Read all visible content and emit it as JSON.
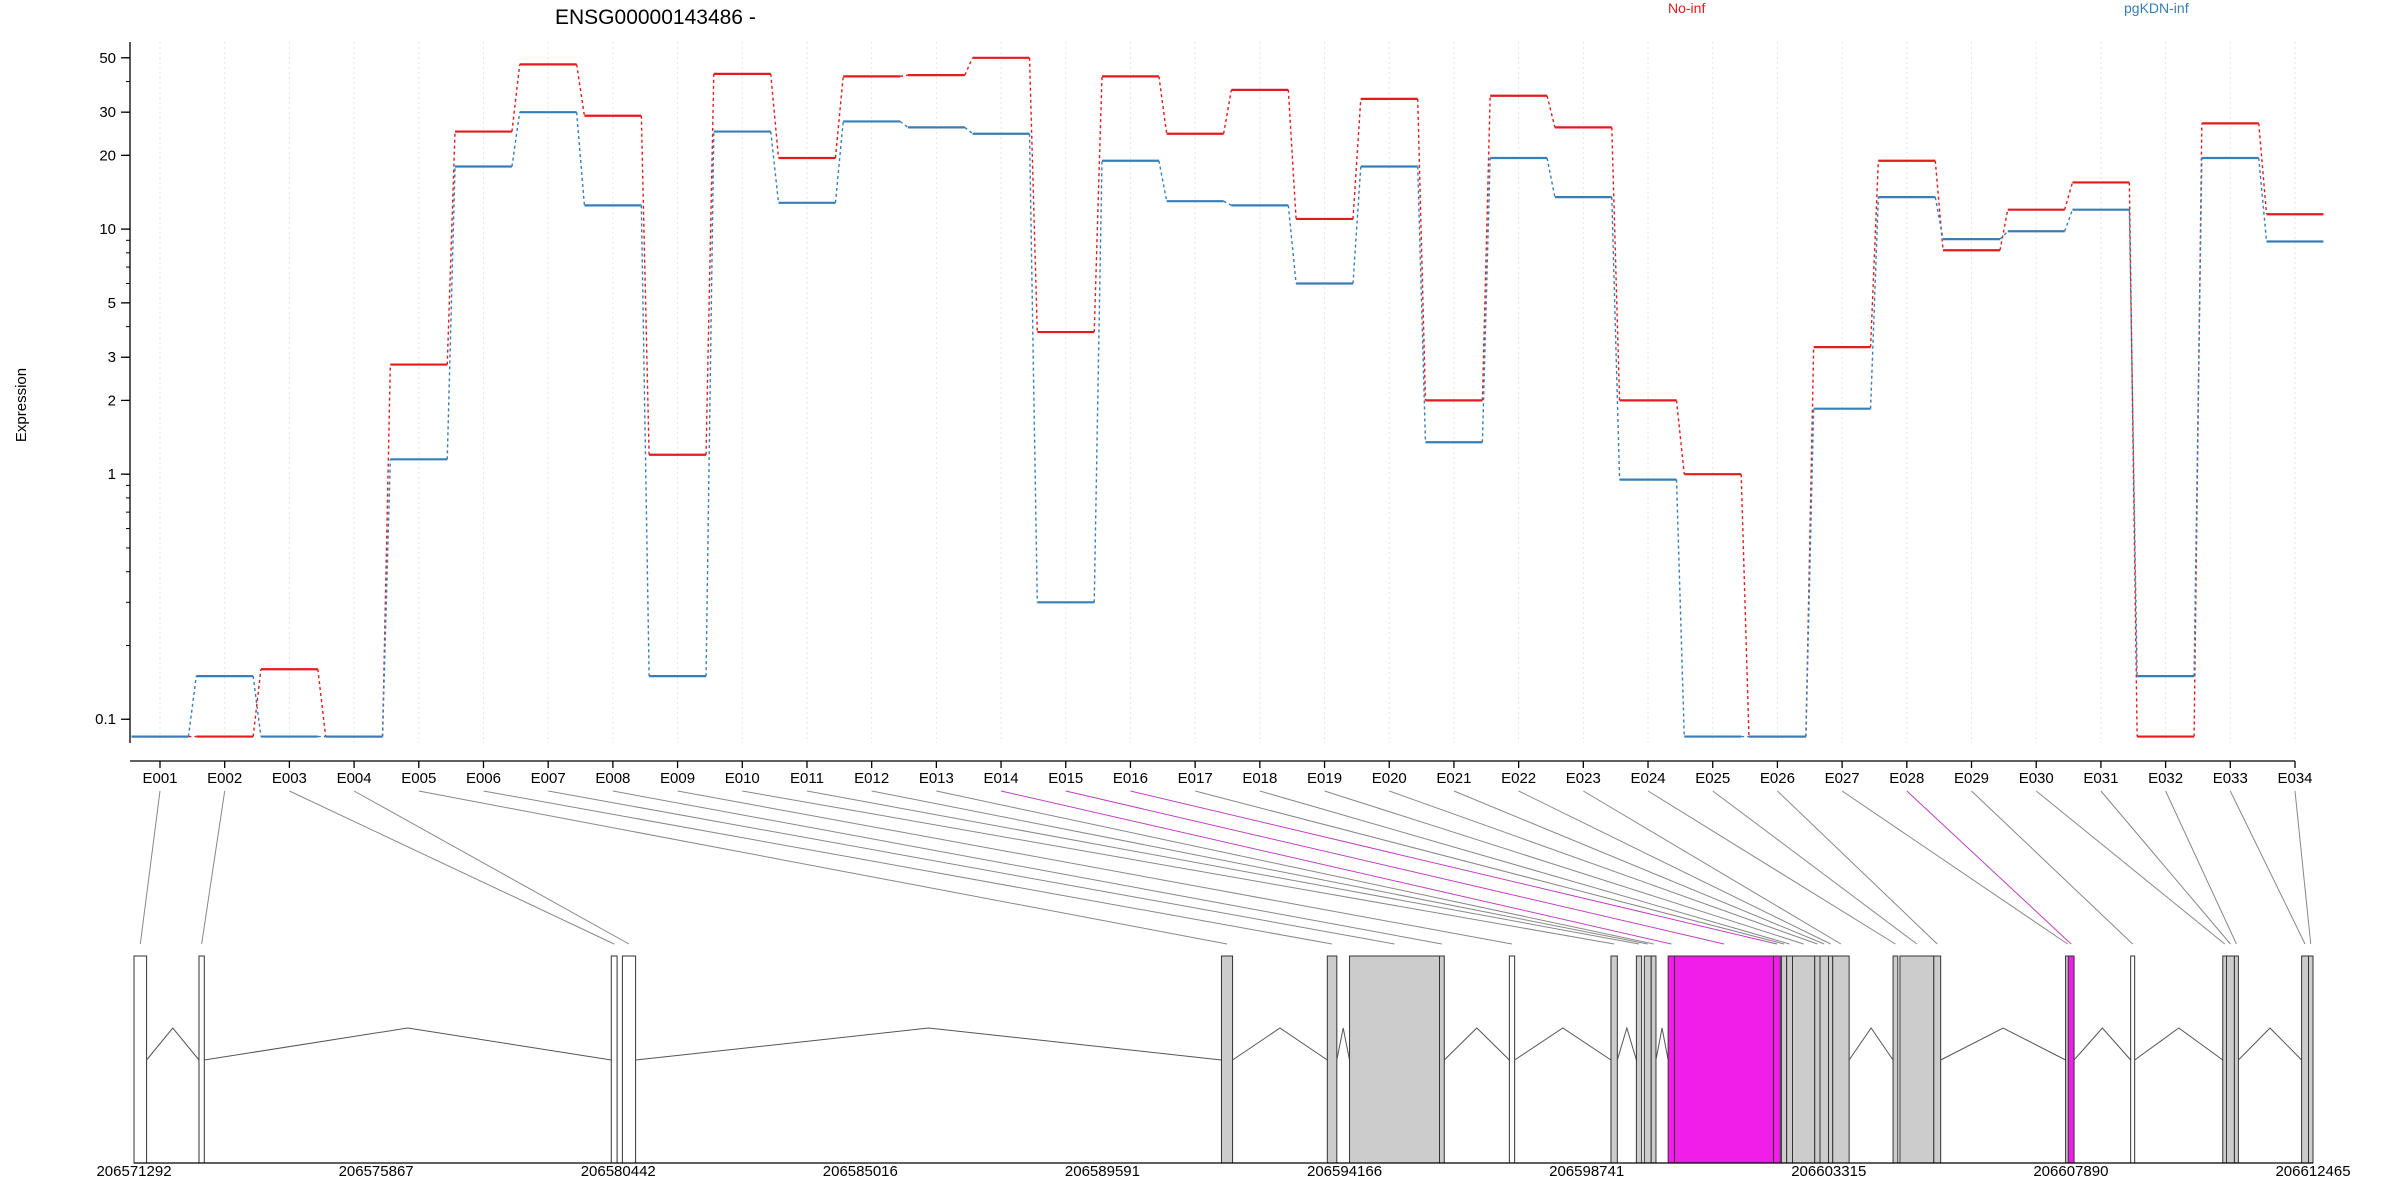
{
  "chart_data": {
    "type": "line",
    "title": "ENSG00000143486 -",
    "ylabel": "Expression",
    "yscale": "log",
    "ylim": [
      0.08,
      58
    ],
    "y_ticks": [
      0.1,
      1,
      2,
      3,
      5,
      10,
      20,
      30,
      50
    ],
    "y_tick_labels": [
      "0.1",
      "1",
      "2",
      "3",
      "5",
      "10",
      "20",
      "30",
      "50"
    ],
    "grid": "vertical",
    "legend_placement": "top",
    "categories": [
      "E001",
      "E002",
      "E003",
      "E004",
      "E005",
      "E006",
      "E007",
      "E008",
      "E009",
      "E010",
      "E011",
      "E012",
      "E013",
      "E014",
      "E015",
      "E016",
      "E017",
      "E018",
      "E019",
      "E020",
      "E021",
      "E022",
      "E023",
      "E024",
      "E025",
      "E026",
      "E027",
      "E028",
      "E029",
      "E030",
      "E031",
      "E032",
      "E033",
      "E034"
    ],
    "series": [
      {
        "name": "No-inf",
        "color": "#e41a1c",
        "values": [
          0.085,
          0.085,
          0.16,
          0.085,
          2.8,
          25,
          47,
          29,
          1.2,
          43,
          19.5,
          42,
          42.5,
          50,
          3.8,
          42,
          24.5,
          37,
          11,
          34,
          2.0,
          35,
          26,
          2.0,
          1.0,
          0.085,
          3.3,
          19,
          8.2,
          12,
          15.5,
          0.085,
          27,
          11.5
        ]
      },
      {
        "name": "pgKDN-inf",
        "color": "#377eb8",
        "values": [
          0.085,
          0.15,
          0.085,
          0.085,
          1.15,
          18,
          30,
          12.5,
          0.15,
          25,
          12.8,
          27.5,
          26,
          24.5,
          0.3,
          19,
          13,
          12.5,
          6,
          18,
          1.35,
          19.5,
          13.5,
          0.95,
          0.085,
          0.085,
          1.85,
          13.5,
          9.1,
          9.8,
          12,
          0.15,
          19.5,
          8.9
        ]
      }
    ],
    "genomic_axis": {
      "ticks": [
        206571292,
        206575867,
        206580442,
        206585016,
        206589591,
        206594166,
        206598741,
        206603315,
        206607890,
        206612465
      ],
      "tick_labels": [
        "206571292",
        "206575867",
        "206580442",
        "206585016",
        "206589591",
        "206594166",
        "206598741",
        "206603315",
        "206607890",
        "206612465"
      ]
    },
    "exon_blocks": [
      {
        "exon": "E001",
        "start": 206571292,
        "end": 206571530,
        "fill": "white"
      },
      {
        "exon": "E002",
        "start": 206572520,
        "end": 206572620,
        "fill": "white"
      },
      {
        "exon": "E003",
        "start": 206580310,
        "end": 206580420,
        "fill": "white"
      },
      {
        "exon": "E004",
        "start": 206580520,
        "end": 206580770,
        "fill": "white"
      },
      {
        "exon": "E005",
        "start": 206591840,
        "end": 206592050,
        "fill": "grey"
      },
      {
        "exon": "E006",
        "start": 206593840,
        "end": 206594020,
        "fill": "grey"
      },
      {
        "exon": "E007",
        "start": 206594260,
        "end": 206595960,
        "fill": "grey"
      },
      {
        "exon": "E008",
        "start": 206595960,
        "end": 206596050,
        "fill": "grey"
      },
      {
        "exon": "E009",
        "start": 206597280,
        "end": 206597380,
        "fill": "white"
      },
      {
        "exon": "E010",
        "start": 206599200,
        "end": 206599320,
        "fill": "grey"
      },
      {
        "exon": "E011",
        "start": 206599680,
        "end": 206599780,
        "fill": "grey"
      },
      {
        "exon": "E012",
        "start": 206599830,
        "end": 206599960,
        "fill": "grey"
      },
      {
        "exon": "E013",
        "start": 206599960,
        "end": 206600050,
        "fill": "grey"
      },
      {
        "exon": "E014",
        "start": 206600280,
        "end": 206600400,
        "fill": "magenta"
      },
      {
        "exon": "E015",
        "start": 206600400,
        "end": 206602270,
        "fill": "magenta"
      },
      {
        "exon": "E016",
        "start": 206602270,
        "end": 206602400,
        "fill": "magenta"
      },
      {
        "exon": "E017",
        "start": 206602420,
        "end": 206602520,
        "fill": "grey"
      },
      {
        "exon": "E018",
        "start": 206602520,
        "end": 206602630,
        "fill": "grey"
      },
      {
        "exon": "E019",
        "start": 206602630,
        "end": 206603050,
        "fill": "grey"
      },
      {
        "exon": "E020",
        "start": 206603050,
        "end": 206603150,
        "fill": "grey"
      },
      {
        "exon": "E021",
        "start": 206603150,
        "end": 206603310,
        "fill": "grey"
      },
      {
        "exon": "E022",
        "start": 206603310,
        "end": 206603390,
        "fill": "grey"
      },
      {
        "exon": "E023",
        "start": 206603390,
        "end": 206603700,
        "fill": "grey"
      },
      {
        "exon": "E024",
        "start": 206604530,
        "end": 206604620,
        "fill": "grey"
      },
      {
        "exon": "E025",
        "start": 206604660,
        "end": 206605300,
        "fill": "grey"
      },
      {
        "exon": "E026",
        "start": 206605300,
        "end": 206605430,
        "fill": "grey"
      },
      {
        "exon": "E027",
        "start": 206607790,
        "end": 206607840,
        "fill": "grey"
      },
      {
        "exon": "E028",
        "start": 206607840,
        "end": 206607950,
        "fill": "magenta"
      },
      {
        "exon": "E029",
        "start": 206609020,
        "end": 206609090,
        "fill": "white"
      },
      {
        "exon": "E030",
        "start": 206610760,
        "end": 206610830,
        "fill": "grey"
      },
      {
        "exon": "E031",
        "start": 206610830,
        "end": 206610980,
        "fill": "grey"
      },
      {
        "exon": "E032",
        "start": 206610980,
        "end": 206611020,
        "fill": "grey"
      },
      {
        "exon": "E033",
        "start": 206612250,
        "end": 206612380,
        "fill": "grey"
      },
      {
        "exon": "E034",
        "start": 206612380,
        "end": 206612465,
        "fill": "grey"
      }
    ]
  }
}
